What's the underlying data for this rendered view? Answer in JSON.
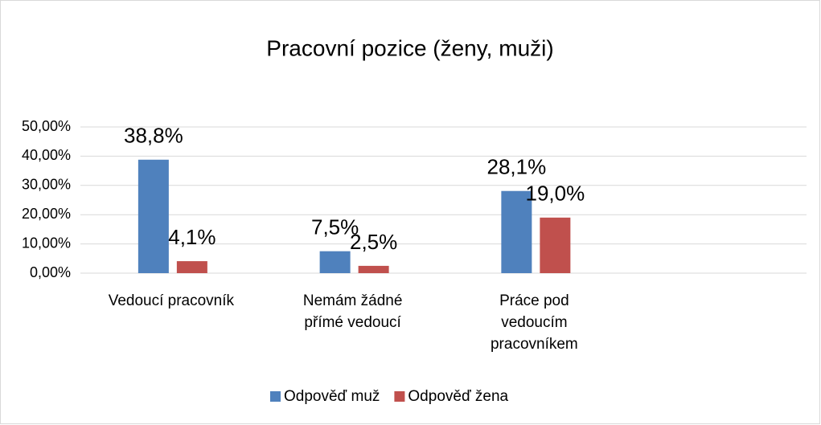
{
  "chart_data": {
    "type": "bar",
    "title": "Pracovní pozice (ženy, muži)",
    "categories": [
      [
        "Vedoucí pracovník"
      ],
      [
        "Nemám žádné",
        "přímé vedoucí"
      ],
      [
        "Práce pod",
        "vedoucím",
        "pracovníkem"
      ],
      null
    ],
    "series": [
      {
        "name": "Odpověď muž",
        "color": "#4f81bd",
        "values": [
          38.8,
          7.5,
          28.1,
          null
        ],
        "value_labels": [
          "38,8%",
          "7,5%",
          "28,1%",
          null
        ]
      },
      {
        "name": "Odpověď žena",
        "color": "#c0504d",
        "values": [
          4.1,
          2.5,
          19.0,
          null
        ],
        "value_labels": [
          "4,1%",
          "2,5%",
          "19,0%",
          null
        ]
      }
    ],
    "ylim": [
      0,
      50
    ],
    "yticks": [
      {
        "value": 0,
        "label": "0,00%"
      },
      {
        "value": 10,
        "label": "10,00%"
      },
      {
        "value": 20,
        "label": "20,00%"
      },
      {
        "value": 30,
        "label": "30,00%"
      },
      {
        "value": 40,
        "label": "40,00%"
      },
      {
        "value": 50,
        "label": "50,00%"
      }
    ],
    "grid": true,
    "legend": "bottom"
  }
}
